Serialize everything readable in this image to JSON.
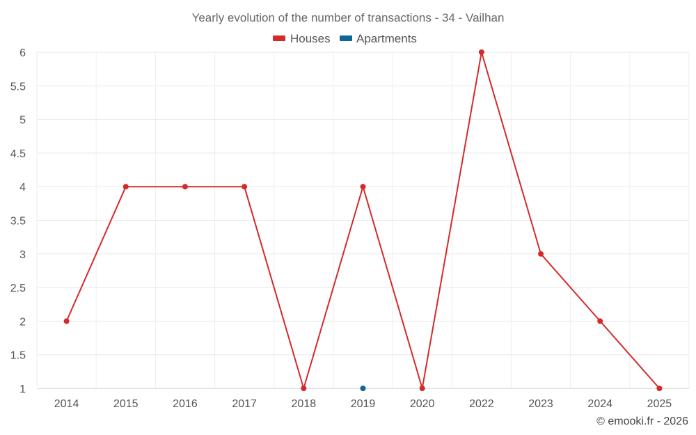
{
  "chart_data": {
    "type": "line",
    "title": "Yearly evolution of the number of transactions - 34 - Vailhan",
    "categories": [
      "2014",
      "2015",
      "2016",
      "2017",
      "2018",
      "2019",
      "2020",
      "2022",
      "2023",
      "2024",
      "2025"
    ],
    "series": [
      {
        "name": "Houses",
        "color": "#d42a2a",
        "values": [
          2,
          4,
          4,
          4,
          1,
          4,
          1,
          6,
          3,
          2,
          1
        ]
      },
      {
        "name": "Apartments",
        "color": "#0d6699",
        "values": [
          null,
          null,
          null,
          null,
          null,
          1,
          null,
          null,
          null,
          null,
          null
        ]
      }
    ],
    "ylim": [
      1,
      6
    ],
    "yticks": [
      "1",
      "1.5",
      "2",
      "2.5",
      "3",
      "3.5",
      "4",
      "4.5",
      "5",
      "5.5",
      "6"
    ],
    "xlabel": "",
    "ylabel": "",
    "grid": true,
    "legend_position": "top-center"
  },
  "credit": "© emooki.fr - 2026"
}
